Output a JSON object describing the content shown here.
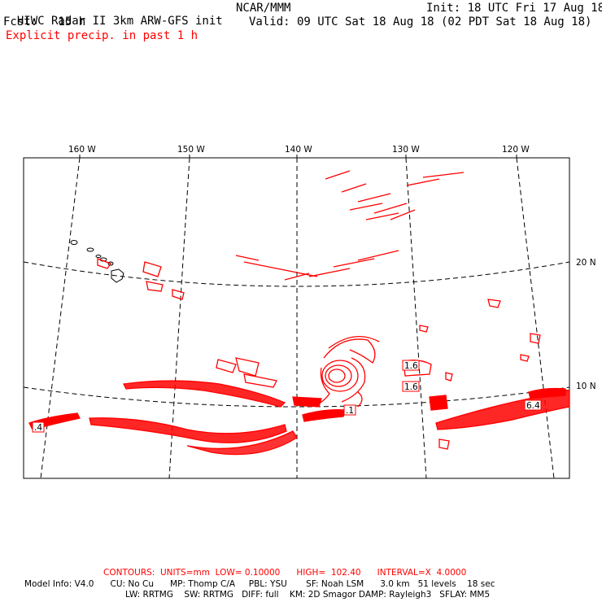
{
  "header": {
    "title": "HIWC Radar II 3km ARW-GFS init",
    "org": "NCAR/MMM",
    "init": "Init: 18 UTC Fri 17 Aug 18",
    "fcst": "Fcst:   15 h",
    "valid": "Valid: 09 UTC Sat 18 Aug 18 (02 PDT Sat 18 Aug 18)",
    "field": "Explicit precip. in past 1 h"
  },
  "map": {
    "lon_labels": [
      "160 W",
      "150 W",
      "140 W",
      "130 W",
      "120 W"
    ],
    "lat_labels": [
      "20 N",
      "10 N"
    ],
    "value_labels": [
      "1.6",
      "1.6",
      "6.4",
      ".1",
      ".4"
    ],
    "contour_color": "#ff0000",
    "land_color": "#000000"
  },
  "footer": {
    "contours": "CONTOURS:  UNITS=mm  LOW= 0.10000      HIGH=  102.40      INTERVAL=X  4.0000",
    "model_line1": "Model Info: V4.0      CU: No Cu      MP: Thomp C/A     PBL: YSU       SF: Noah LSM      3.0 km   51 levels    18 sec",
    "model_line2": "LW: RRTMG    SW: RRTMG   DIFF: full    KM: 2D Smagor DAMP: Rayleigh3   SFLAY: MM5"
  }
}
